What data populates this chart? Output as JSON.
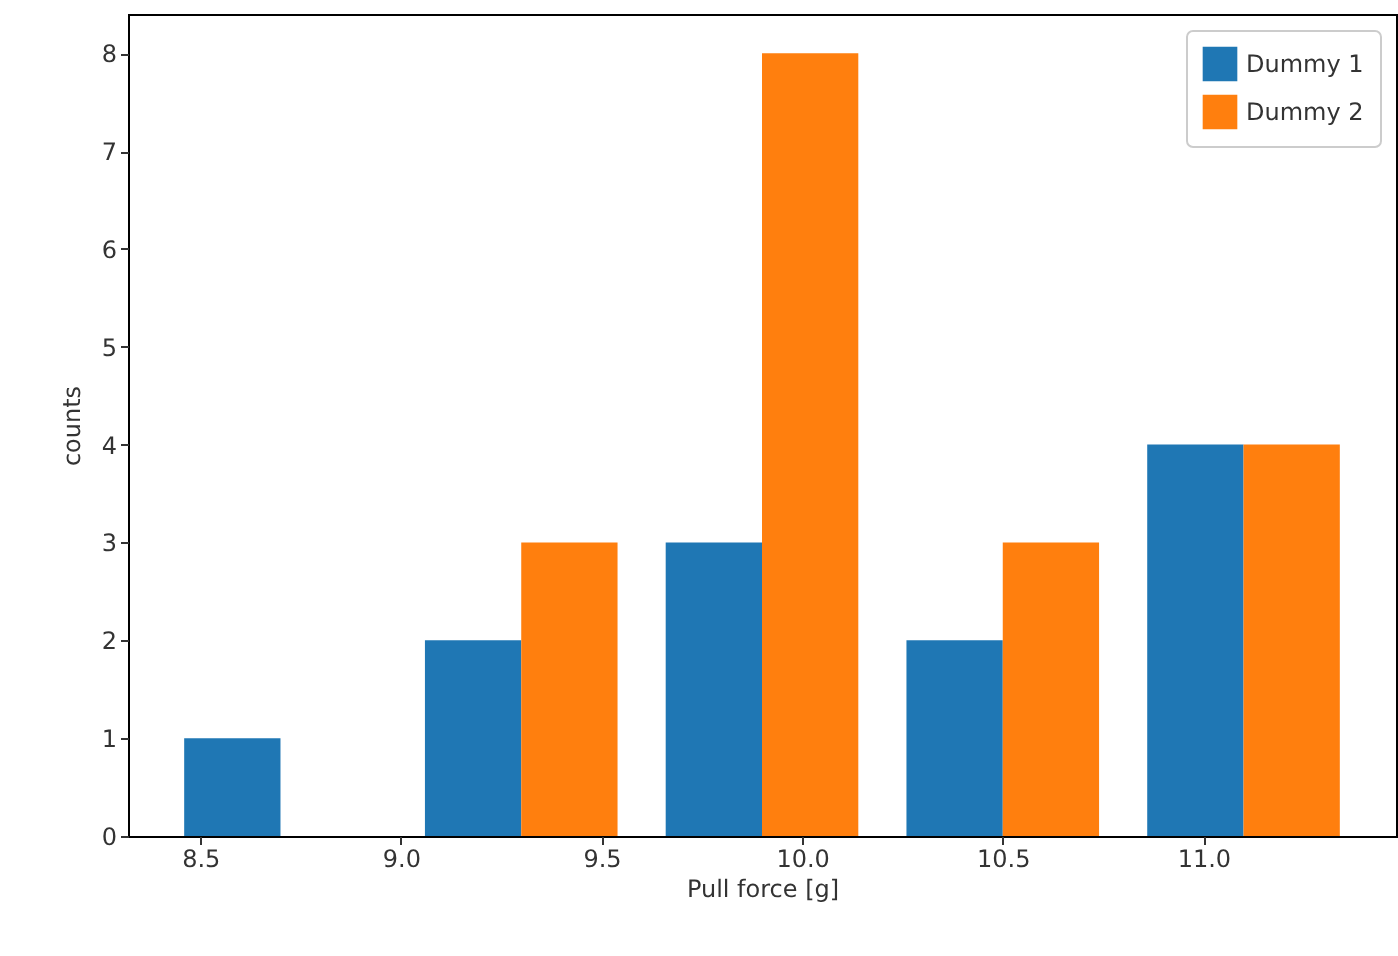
{
  "chart_data": {
    "type": "histogram",
    "xlabel": "Pull force [g]",
    "ylabel": "counts",
    "bins": [
      8.4,
      9.0,
      9.6,
      10.2,
      10.8,
      11.4
    ],
    "series": [
      {
        "name": "Dummy 1",
        "color": "#1f77b4",
        "values": [
          1,
          2,
          3,
          2,
          4
        ]
      },
      {
        "name": "Dummy 2",
        "color": "#ff7f0e",
        "values": [
          0,
          3,
          8,
          3,
          4
        ]
      }
    ],
    "xlim": [
      8.32,
      11.48
    ],
    "xticks": [
      8.5,
      {
        "value": 9,
        "label": "9.0"
      },
      9.5,
      {
        "value": 10,
        "label": "10.0"
      },
      10.5,
      {
        "value": 11,
        "label": "11.0"
      }
    ],
    "ylim": [
      0,
      8.4
    ],
    "yticks": [
      0,
      1,
      2,
      3,
      4,
      5,
      6,
      7,
      8
    ],
    "legend": "top right",
    "grid": false
  }
}
